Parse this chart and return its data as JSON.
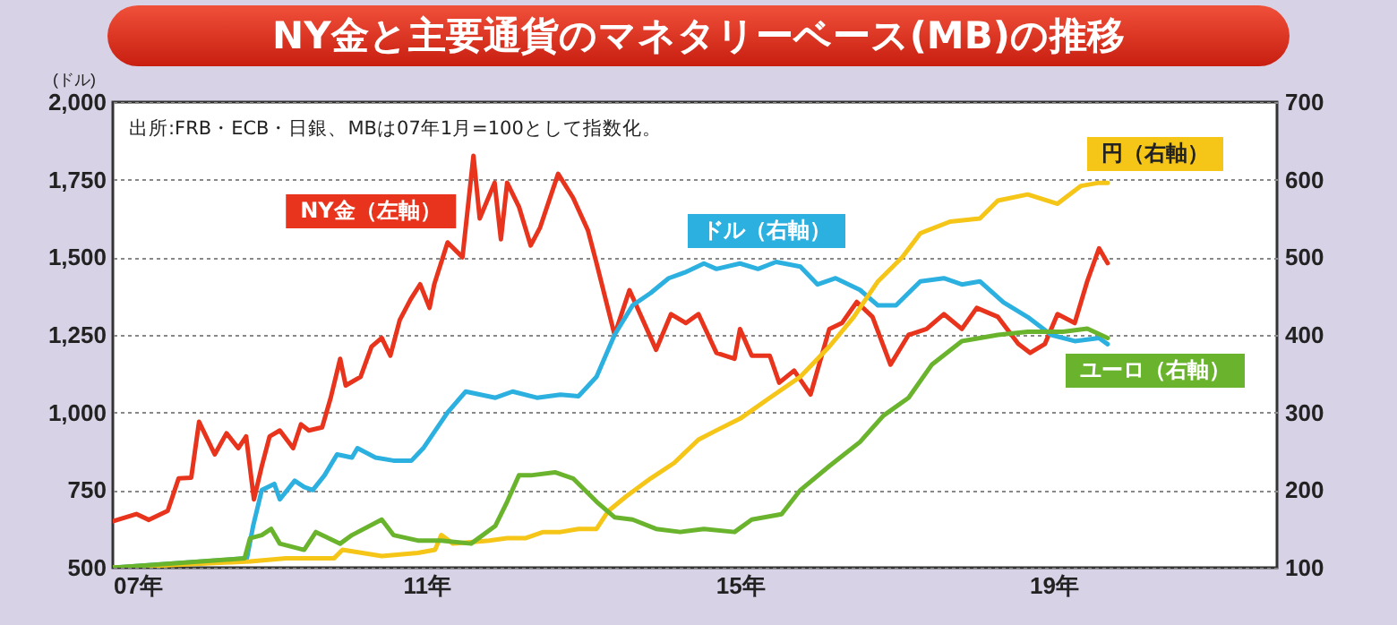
{
  "chart_data": {
    "type": "line",
    "title": "NY金と主要通貨のマネタリーベース(MB)の推移",
    "ylabel": "(ドル)",
    "annotations": [
      "出所:FRB・ECB・日銀、MBは07年1月=100として指数化。"
    ],
    "xlim": [
      7,
      21.85
    ],
    "xticks": [
      {
        "value": 7,
        "label": "07年"
      },
      {
        "value": 11,
        "label": "11年"
      },
      {
        "value": 15,
        "label": "15年"
      },
      {
        "value": 19,
        "label": "19年"
      }
    ],
    "ylim": [
      500,
      2000
    ],
    "yticks": [
      500,
      750,
      {
        "value": 1000,
        "label": "1,000"
      },
      {
        "value": 1250,
        "label": "1,250"
      },
      {
        "value": 1500,
        "label": "1,500"
      },
      {
        "value": 1750,
        "label": "1,750"
      },
      {
        "value": 2000,
        "label": "2,000"
      }
    ],
    "y2lim": [
      100,
      700
    ],
    "y2ticks": [
      100,
      200,
      300,
      400,
      500,
      600,
      700
    ],
    "grid": "y",
    "series": [
      {
        "name": "NY金（左軸）",
        "color": "#e8341c",
        "x": [
          7.0,
          7.3,
          7.46,
          7.7,
          7.84,
          8.0,
          8.1,
          8.3,
          8.45,
          8.6,
          8.7,
          8.8,
          8.9,
          9.0,
          9.13,
          9.3,
          9.4,
          9.5,
          9.67,
          9.78,
          9.9,
          9.97,
          10.16,
          10.3,
          10.43,
          10.54,
          10.66,
          10.8,
          10.92,
          11.04,
          11.1,
          11.27,
          11.46,
          11.6,
          11.68,
          11.87,
          11.95,
          12.03,
          12.18,
          12.33,
          12.45,
          12.68,
          12.87,
          13.06,
          13.17,
          13.4,
          13.59,
          13.93,
          14.12,
          14.31,
          14.47,
          14.7,
          14.93,
          15.0,
          15.15,
          15.38,
          15.5,
          15.69,
          15.9,
          16.14,
          16.3,
          16.49,
          16.69,
          16.92,
          17.15,
          17.38,
          17.6,
          17.83,
          18.02,
          18.29,
          18.55,
          18.7,
          18.89,
          19.05,
          19.27,
          19.43,
          19.58,
          19.69
        ],
        "values": [
          650,
          673,
          654,
          683,
          788,
          790,
          970,
          865,
          933,
          885,
          923,
          720,
          827,
          923,
          942,
          885,
          962,
          942,
          952,
          1048,
          1173,
          1087,
          1115,
          1212,
          1240,
          1183,
          1298,
          1365,
          1413,
          1337,
          1413,
          1548,
          1500,
          1827,
          1625,
          1740,
          1558,
          1740,
          1663,
          1538,
          1596,
          1769,
          1692,
          1587,
          1481,
          1250,
          1394,
          1202,
          1317,
          1288,
          1317,
          1192,
          1173,
          1269,
          1183,
          1183,
          1096,
          1135,
          1058,
          1269,
          1288,
          1356,
          1308,
          1154,
          1250,
          1269,
          1317,
          1269,
          1337,
          1308,
          1221,
          1192,
          1221,
          1317,
          1288,
          1423,
          1529,
          1481
        ]
      },
      {
        "name": "ドル（右軸）",
        "color": "#2bb0e0",
        "axis": "y2",
        "x": [
          7.0,
          8.71,
          8.79,
          8.9,
          9.06,
          9.13,
          9.32,
          9.44,
          9.55,
          9.7,
          9.86,
          10.05,
          10.12,
          10.35,
          10.58,
          10.81,
          10.96,
          11.27,
          11.5,
          11.88,
          12.1,
          12.41,
          12.71,
          12.94,
          13.17,
          13.4,
          13.63,
          13.86,
          14.09,
          14.31,
          14.54,
          14.7,
          15.0,
          15.23,
          15.46,
          15.77,
          15.99,
          16.22,
          16.53,
          16.76,
          16.99,
          17.3,
          17.6,
          17.83,
          18.06,
          18.36,
          18.67,
          18.97,
          19.27,
          19.58,
          19.69
        ],
        "values": [
          100,
          112,
          154,
          200,
          208,
          188,
          212,
          204,
          200,
          219,
          246,
          242,
          254,
          242,
          238,
          238,
          254,
          300,
          327,
          319,
          327,
          319,
          323,
          321,
          346,
          400,
          438,
          454,
          473,
          481,
          492,
          485,
          492,
          485,
          494,
          488,
          465,
          473,
          458,
          438,
          438,
          469,
          473,
          465,
          469,
          442,
          423,
          400,
          392,
          396,
          388
        ]
      },
      {
        "name": "円（右軸）",
        "color": "#f5c518",
        "axis": "y2",
        "x": [
          7.0,
          8.75,
          9.21,
          9.82,
          9.93,
          10.43,
          10.89,
          11.11,
          11.19,
          11.34,
          11.8,
          12.03,
          12.26,
          12.49,
          12.71,
          12.94,
          13.17,
          13.32,
          13.55,
          13.86,
          14.16,
          14.47,
          14.7,
          15.0,
          15.38,
          15.77,
          16.14,
          16.45,
          16.76,
          17.07,
          17.3,
          17.68,
          18.06,
          18.29,
          18.67,
          19.05,
          19.35,
          19.58,
          19.69
        ],
        "values": [
          100,
          108,
          112,
          112,
          123,
          115,
          119,
          123,
          142,
          131,
          135,
          138,
          138,
          146,
          146,
          150,
          150,
          173,
          192,
          215,
          235,
          265,
          277,
          292,
          319,
          346,
          385,
          423,
          469,
          500,
          531,
          546,
          550,
          573,
          581,
          569,
          592,
          596,
          596
        ]
      },
      {
        "name": "ユーロ（右軸）",
        "color": "#6ab42d",
        "axis": "y2",
        "x": [
          7.0,
          8.68,
          8.75,
          8.9,
          9.02,
          9.13,
          9.44,
          9.59,
          9.9,
          10.05,
          10.43,
          10.58,
          10.89,
          11.19,
          11.57,
          11.88,
          12.03,
          12.18,
          12.33,
          12.64,
          12.87,
          13.17,
          13.4,
          13.63,
          13.93,
          14.24,
          14.54,
          14.93,
          15.15,
          15.53,
          15.77,
          16.14,
          16.53,
          16.83,
          17.15,
          17.45,
          17.83,
          18.29,
          18.67,
          19.12,
          19.43,
          19.69
        ],
        "values": [
          100,
          112,
          138,
          142,
          150,
          131,
          123,
          146,
          131,
          142,
          162,
          142,
          135,
          135,
          131,
          154,
          185,
          219,
          219,
          223,
          215,
          185,
          165,
          162,
          150,
          146,
          150,
          146,
          162,
          169,
          200,
          231,
          262,
          296,
          319,
          362,
          392,
          400,
          404,
          404,
          408,
          396
        ]
      }
    ]
  }
}
